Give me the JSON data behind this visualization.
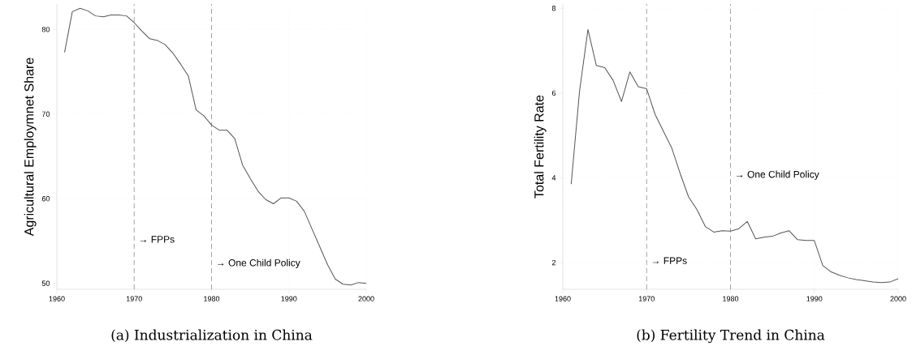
{
  "chart_data": [
    {
      "type": "line",
      "title": "(a) Industrialization in China",
      "ylabel": "Agricultural Employmnet Share",
      "x": [
        1961,
        1962,
        1963,
        1964,
        1965,
        1966,
        1967,
        1968,
        1969,
        1970,
        1971,
        1972,
        1973,
        1974,
        1975,
        1976,
        1977,
        1978,
        1979,
        1980,
        1981,
        1982,
        1983,
        1984,
        1985,
        1986,
        1987,
        1988,
        1989,
        1990,
        1991,
        1992,
        1993,
        1994,
        1995,
        1996,
        1997,
        1998,
        1999,
        2000
      ],
      "series": [
        {
          "color": "#555555",
          "values": [
            77.3,
            82.1,
            82.5,
            82.2,
            81.6,
            81.5,
            81.7,
            81.7,
            81.6,
            80.8,
            79.8,
            78.9,
            78.7,
            78.2,
            77.2,
            75.9,
            74.5,
            70.5,
            69.8,
            68.7,
            68.1,
            68.1,
            67.1,
            64.0,
            62.4,
            60.9,
            59.9,
            59.4,
            60.1,
            60.1,
            59.7,
            58.5,
            56.4,
            54.3,
            52.2,
            50.5,
            49.9,
            49.8,
            50.1,
            50.0
          ]
        }
      ],
      "xlim": [
        1960,
        2000
      ],
      "ylim": [
        49.3,
        83
      ],
      "xticks": [
        1960,
        1970,
        1980,
        1990,
        2000
      ],
      "yticks": [
        50,
        60,
        70,
        80
      ],
      "grid": true,
      "line_style": "solid",
      "ref_lines": [
        {
          "axis": "x",
          "value": 1970,
          "color": "#999999",
          "line_style": "dashed",
          "label": "→ FPPs"
        },
        {
          "axis": "x",
          "value": 1980,
          "color": "#999999",
          "line_style": "dashed",
          "label": "→ One Child Policy"
        }
      ]
    },
    {
      "type": "line",
      "title": "(b) Fertility Trend in China",
      "ylabel": "Total Fertility Rate",
      "x": [
        1961,
        1962,
        1963,
        1964,
        1965,
        1966,
        1967,
        1968,
        1969,
        1970,
        1971,
        1972,
        1973,
        1974,
        1975,
        1976,
        1977,
        1978,
        1979,
        1980,
        1981,
        1982,
        1983,
        1984,
        1985,
        1986,
        1987,
        1988,
        1989,
        1990,
        1991,
        1992,
        1993,
        1994,
        1995,
        1996,
        1997,
        1998,
        1999,
        2000
      ],
      "series": [
        {
          "color": "#555555",
          "values": [
            3.85,
            6.05,
            7.5,
            6.65,
            6.6,
            6.3,
            5.8,
            6.5,
            6.15,
            6.1,
            5.5,
            5.1,
            4.7,
            4.1,
            3.55,
            3.25,
            2.85,
            2.72,
            2.75,
            2.74,
            2.8,
            2.97,
            2.56,
            2.6,
            2.62,
            2.7,
            2.75,
            2.54,
            2.52,
            2.52,
            1.93,
            1.78,
            1.7,
            1.64,
            1.6,
            1.57,
            1.54,
            1.53,
            1.54,
            1.62
          ]
        }
      ],
      "xlim": [
        1960,
        2000
      ],
      "ylim": [
        1.37,
        8.1
      ],
      "xticks": [
        1960,
        1970,
        1980,
        1990,
        2000
      ],
      "yticks": [
        2,
        4,
        6,
        8
      ],
      "grid": true,
      "line_style": "solid",
      "ref_lines": [
        {
          "axis": "x",
          "value": 1970,
          "color": "#999999",
          "line_style": "dashed",
          "label": "→ FPPs"
        },
        {
          "axis": "x",
          "value": 1980,
          "color": "#999999",
          "line_style": "dashed",
          "label": "→ One Child Policy"
        }
      ]
    }
  ]
}
